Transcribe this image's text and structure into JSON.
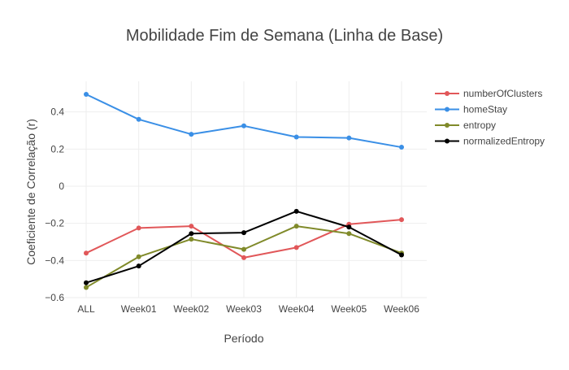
{
  "chart_data": {
    "type": "line",
    "title": "Mobilidade Fim de Semana (Linha de Base)",
    "xlabel": "Período",
    "ylabel": "Coeficiente de Correlação (r)",
    "categories": [
      "ALL",
      "Week01",
      "Week02",
      "Week03",
      "Week04",
      "Week05",
      "Week06"
    ],
    "ylim": [
      -0.6,
      0.6
    ],
    "yticks": [
      {
        "value": 0.4,
        "label": "0.4"
      },
      {
        "value": 0.2,
        "label": "0.2"
      },
      {
        "value": 0,
        "label": "0"
      },
      {
        "value": -0.2,
        "label": "−0.2"
      },
      {
        "value": -0.4,
        "label": "−0.4"
      },
      {
        "value": -0.6,
        "label": "−0.6"
      }
    ],
    "grid": true,
    "legend_position": "top-right",
    "series": [
      {
        "name": "numberOfClusters",
        "color": "#e15759",
        "values": [
          -0.36,
          -0.225,
          -0.215,
          -0.385,
          -0.33,
          -0.205,
          -0.18
        ]
      },
      {
        "name": "homeStay",
        "color": "#3a8fe6",
        "values": [
          0.495,
          0.36,
          0.28,
          0.325,
          0.265,
          0.26,
          0.21
        ]
      },
      {
        "name": "entropy",
        "color": "#808a2a",
        "values": [
          -0.545,
          -0.38,
          -0.285,
          -0.34,
          -0.215,
          -0.255,
          -0.36
        ]
      },
      {
        "name": "normalizedEntropy",
        "color": "#000000",
        "values": [
          -0.52,
          -0.43,
          -0.255,
          -0.25,
          -0.135,
          -0.22,
          -0.37
        ]
      }
    ]
  }
}
